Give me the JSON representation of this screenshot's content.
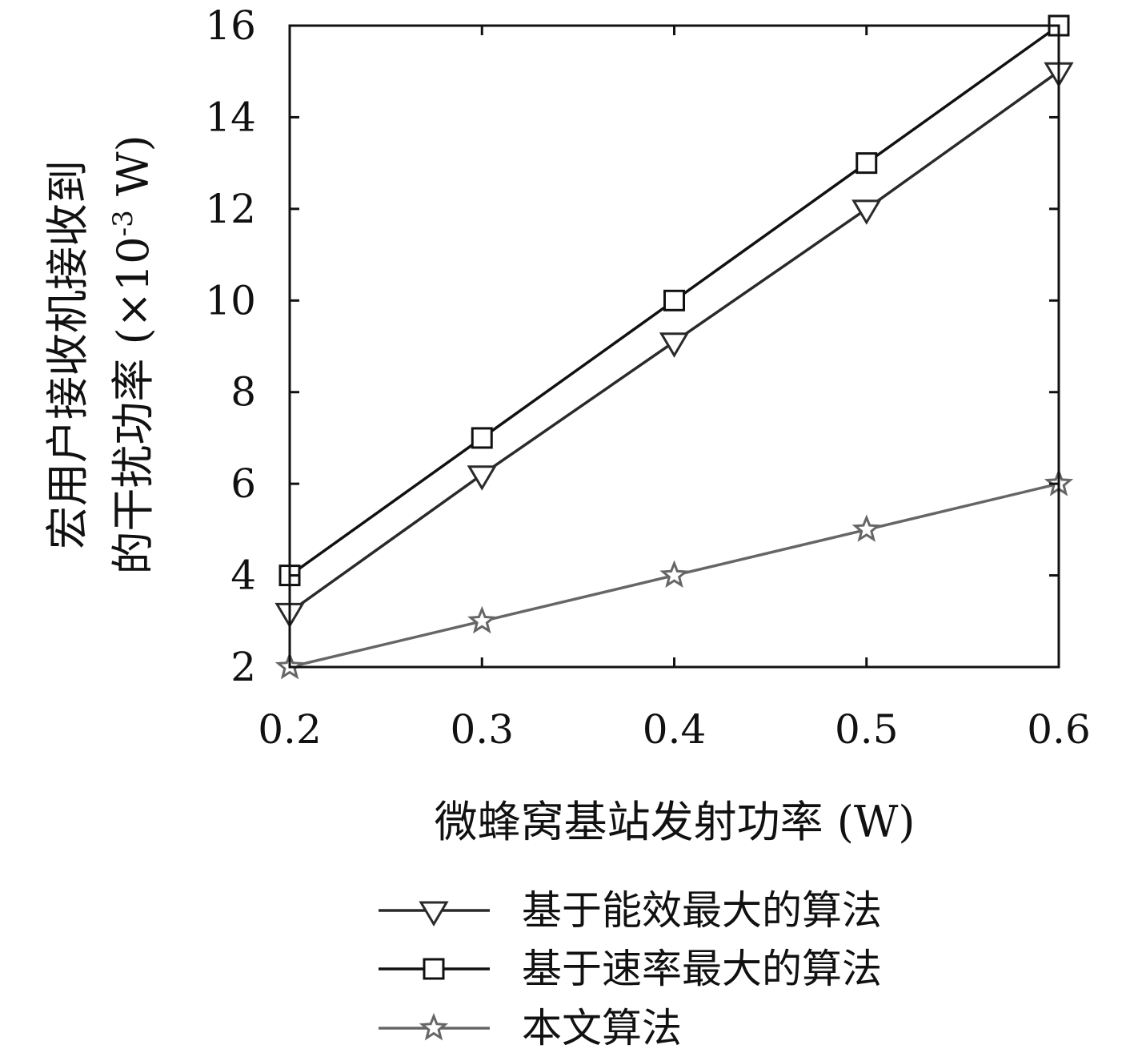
{
  "chart_data": {
    "type": "line",
    "title": "",
    "xlabel": "微蜂窝基站发射功率 (W)",
    "ylabel_line1": "宏用户接收机接收到",
    "ylabel_line2": "的干扰功率 (×10",
    "ylabel_exp": "-3",
    "ylabel_unit": " W)",
    "x": [
      0.2,
      0.3,
      0.4,
      0.5,
      0.6
    ],
    "x_tick_labels": [
      "0.2",
      "0.3",
      "0.4",
      "0.5",
      "0.6"
    ],
    "xlim": [
      0.2,
      0.6
    ],
    "y_ticks": [
      2,
      4,
      6,
      8,
      10,
      12,
      14,
      16
    ],
    "y_tick_labels": [
      "2",
      "4",
      "6",
      "8",
      "10",
      "12",
      "14",
      "16"
    ],
    "ylim": [
      2,
      16
    ],
    "grid": false,
    "legend_position": "bottom",
    "series": [
      {
        "name": "基于能效最大的算法",
        "marker": "triangle-down",
        "color": "#2a2a2a",
        "values": [
          3.2,
          6.2,
          9.1,
          12.0,
          15.0
        ]
      },
      {
        "name": "基于速率最大的算法",
        "marker": "square",
        "color": "#111111",
        "values": [
          4.0,
          7.0,
          10.0,
          13.0,
          16.0
        ]
      },
      {
        "name": "本文算法",
        "marker": "star",
        "color": "#666666",
        "values": [
          2.0,
          3.0,
          4.0,
          5.0,
          6.0
        ]
      }
    ]
  }
}
